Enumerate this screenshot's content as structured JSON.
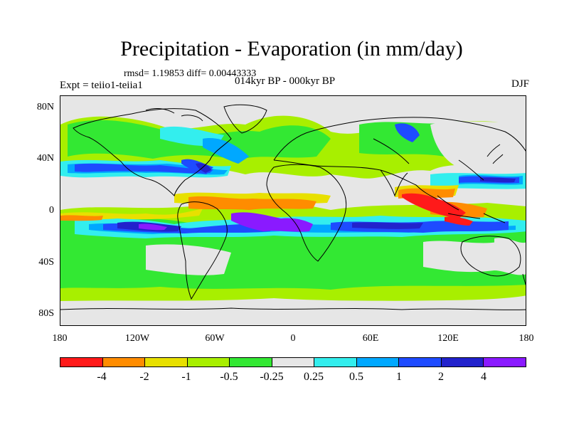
{
  "title": "Precipitation - Evaporation (in mm/day)",
  "stats": "rmsd= 1.19853 diff= 0.00443333",
  "experiment": "Expt = teiio1-teiia1",
  "period": "014kyr BP - 000kyr BP",
  "season": "DJF",
  "lat_labels": [
    "80N",
    "40N",
    "0",
    "40S",
    "80S"
  ],
  "lon_labels": [
    "180",
    "120W",
    "60W",
    "0",
    "60E",
    "120E",
    "180"
  ],
  "colorbar": {
    "colors": [
      "#ff1a1a",
      "#ff8c00",
      "#e8e000",
      "#a8ef00",
      "#33e833",
      "#e6e6e6",
      "#33eeee",
      "#00a8ff",
      "#1e4bff",
      "#2222cc",
      "#8a1aff"
    ],
    "labels": [
      "-4",
      "-2",
      "-1",
      "-0.5",
      "-0.25",
      "0.25",
      "0.5",
      "1",
      "2",
      "4"
    ]
  },
  "colors": {
    "land_neutral": "#e6e6e6",
    "coastline": "#000000"
  }
}
